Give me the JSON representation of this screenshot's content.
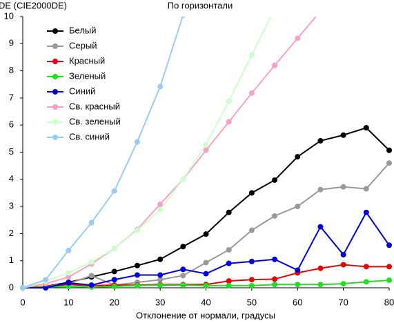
{
  "chart_data": {
    "type": "line",
    "title": "По горизонтали",
    "y_label": "DE (CIE2000DE)",
    "x_label": "Отклонение от нормали, градусы",
    "x": [
      0,
      5,
      10,
      15,
      20,
      25,
      30,
      35,
      40,
      45,
      50,
      55,
      60,
      65,
      70,
      75,
      80
    ],
    "xlim": [
      0,
      80
    ],
    "xticks": [
      0,
      10,
      20,
      30,
      40,
      50,
      60,
      70,
      80
    ],
    "ylim": [
      0,
      10
    ],
    "yticks": [
      0,
      1,
      2,
      3,
      4,
      5,
      6,
      7,
      8,
      9,
      10
    ],
    "grid": false,
    "legend": "upper left",
    "series": [
      {
        "name": "Белый",
        "color": "#000000",
        "values": [
          0,
          0.05,
          0.2,
          0.4,
          0.6,
          0.82,
          1.05,
          1.52,
          1.98,
          2.78,
          3.5,
          3.97,
          4.83,
          5.42,
          5.63,
          5.9,
          5.07
        ]
      },
      {
        "name": "Серый",
        "color": "#999999",
        "values": [
          0,
          0.05,
          0.15,
          0.45,
          0.1,
          0.2,
          0.3,
          0.45,
          0.93,
          1.4,
          2.12,
          2.65,
          3.0,
          3.62,
          3.72,
          3.65,
          4.6
        ]
      },
      {
        "name": "Красный",
        "color": "#ee0000",
        "values": [
          0,
          0.05,
          0.12,
          0.08,
          0.1,
          0.1,
          0.12,
          0.12,
          0.12,
          0.25,
          0.3,
          0.32,
          0.55,
          0.72,
          0.85,
          0.78,
          0.78
        ]
      },
      {
        "name": "Зеленый",
        "color": "#22dd22",
        "values": [
          0,
          0.03,
          0.05,
          0.03,
          0.05,
          0.08,
          0.1,
          0.1,
          0.08,
          0.08,
          0.08,
          0.12,
          0.12,
          0.12,
          0.15,
          0.22,
          0.28
        ]
      },
      {
        "name": "Синий",
        "color": "#0000dd",
        "values": [
          0,
          0,
          0.18,
          0.1,
          0.3,
          0.47,
          0.47,
          0.68,
          0.52,
          0.9,
          0.97,
          1.05,
          0.65,
          2.25,
          1.22,
          2.78,
          1.57
        ]
      },
      {
        "name": "Св. красный",
        "color": "#f9a0c8",
        "values": [
          0,
          0.15,
          0.4,
          0.88,
          1.45,
          2.15,
          3.08,
          4.0,
          5.07,
          6.12,
          7.18,
          8.2,
          9.2,
          10.2,
          null,
          null,
          null
        ]
      },
      {
        "name": "Св. зеленый",
        "color": "#ccffcc",
        "values": [
          0,
          0.25,
          0.55,
          0.95,
          1.45,
          2.12,
          2.88,
          4.0,
          5.28,
          6.88,
          8.58,
          10.3,
          null,
          null,
          null,
          null,
          null
        ]
      },
      {
        "name": "Св. синий",
        "color": "#99ccf5",
        "values": [
          0,
          0.3,
          1.38,
          2.4,
          3.57,
          5.38,
          7.42,
          10.05,
          null,
          null,
          null,
          null,
          null,
          null,
          null,
          null,
          null
        ]
      }
    ]
  }
}
